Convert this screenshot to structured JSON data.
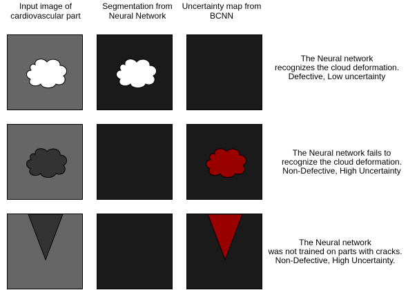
{
  "headers": [
    "Input image of\ncardiovascular part",
    "Segmentation from\nNeural Network",
    "Uncertainty map from\nBCNN"
  ],
  "rows": [
    {
      "description": "The Neural network\nrecognizes the cloud deformation.\nDefective, Low uncertainty"
    },
    {
      "description": "The Neural network fails to\nrecognize the cloud deformation.\nNon-Defective, High Uncertainty"
    },
    {
      "description": "The Neural network\nwas not trained on parts with cracks.\nNon-Defective, High Uncertainty."
    }
  ],
  "colors": {
    "input_background": "#666666",
    "output_background": "#1a1a1a",
    "segmented_defect": "#ffffff",
    "missed_defect": "#333333",
    "uncertainty": "#990000"
  }
}
